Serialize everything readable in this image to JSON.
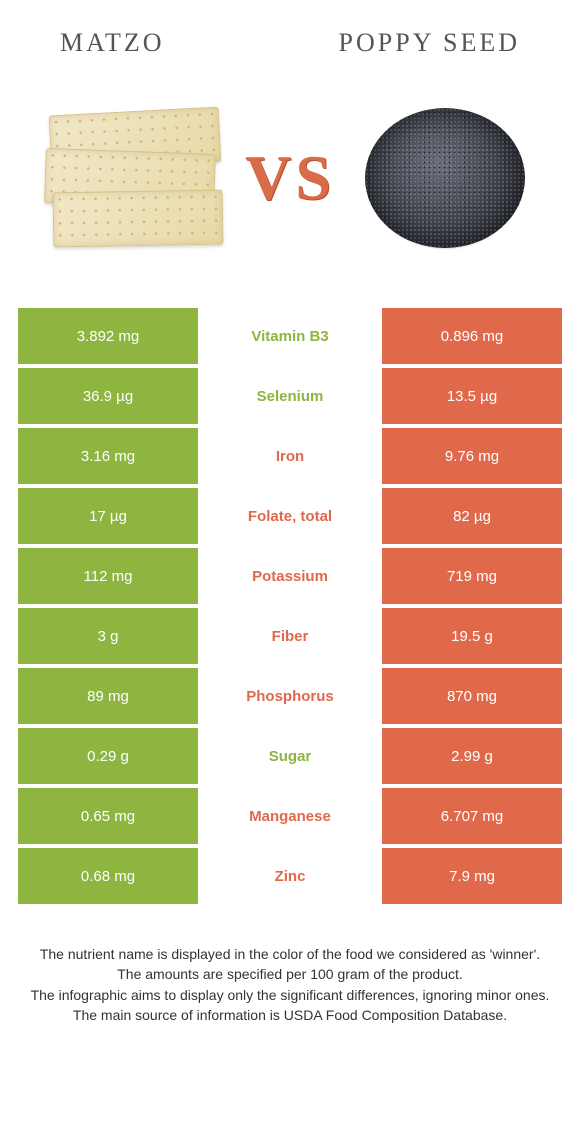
{
  "header": {
    "left_title": "Matzo",
    "right_title": "poppy seed",
    "vs_label": "VS"
  },
  "colors": {
    "green": "#8eb53f",
    "orange": "#e0694b",
    "title_text": "#555555",
    "vs_text": "#d96b48"
  },
  "rows": [
    {
      "nutrient": "Vitamin B3",
      "left": "3.892 mg",
      "right": "0.896 mg",
      "winner": "left"
    },
    {
      "nutrient": "Selenium",
      "left": "36.9 µg",
      "right": "13.5 µg",
      "winner": "left"
    },
    {
      "nutrient": "Iron",
      "left": "3.16 mg",
      "right": "9.76 mg",
      "winner": "right"
    },
    {
      "nutrient": "Folate, total",
      "left": "17 µg",
      "right": "82 µg",
      "winner": "right"
    },
    {
      "nutrient": "Potassium",
      "left": "112 mg",
      "right": "719 mg",
      "winner": "right"
    },
    {
      "nutrient": "Fiber",
      "left": "3 g",
      "right": "19.5 g",
      "winner": "right"
    },
    {
      "nutrient": "Phosphorus",
      "left": "89 mg",
      "right": "870 mg",
      "winner": "right"
    },
    {
      "nutrient": "Sugar",
      "left": "0.29 g",
      "right": "2.99 g",
      "winner": "left"
    },
    {
      "nutrient": "Manganese",
      "left": "0.65 mg",
      "right": "6.707 mg",
      "winner": "right"
    },
    {
      "nutrient": "Zinc",
      "left": "0.68 mg",
      "right": "7.9 mg",
      "winner": "right"
    }
  ],
  "footnotes": [
    "The nutrient name is displayed in the color of the food we considered as 'winner'.",
    "The amounts are specified per 100 gram of the product.",
    "The infographic aims to display only the significant differences, ignoring minor ones.",
    "The main source of information is USDA Food Composition Database."
  ]
}
